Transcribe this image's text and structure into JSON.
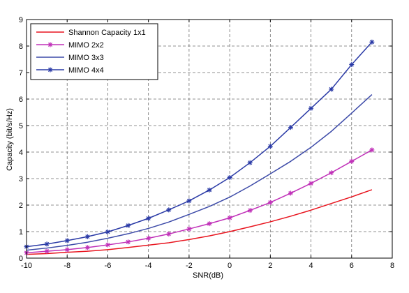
{
  "chart_data": {
    "type": "line",
    "title": "",
    "xlabel": "SNR(dB)",
    "ylabel": "Capacity (bit/s/Hz)",
    "xlim": [
      -10,
      8
    ],
    "ylim": [
      0,
      9
    ],
    "xticks": [
      -10,
      -8,
      -6,
      -4,
      -2,
      0,
      2,
      4,
      6,
      8
    ],
    "yticks": [
      0,
      1,
      2,
      3,
      4,
      5,
      6,
      7,
      8,
      9
    ],
    "grid": true,
    "legend_position": "top-left",
    "x": [
      -10,
      -9,
      -8,
      -7,
      -6,
      -5,
      -4,
      -3,
      -2,
      -1,
      0,
      1,
      2,
      3,
      4,
      5,
      6,
      7
    ],
    "series": [
      {
        "name": "Shannon Capacity 1x1",
        "color": "#e8141e",
        "marker": "none",
        "values": [
          0.14,
          0.17,
          0.22,
          0.26,
          0.32,
          0.4,
          0.49,
          0.58,
          0.7,
          0.84,
          1.0,
          1.18,
          1.37,
          1.58,
          1.81,
          2.06,
          2.31,
          2.58
        ]
      },
      {
        "name": "MIMO 2x2",
        "color": "#c030b8",
        "marker": "star",
        "values": [
          0.2,
          0.26,
          0.32,
          0.4,
          0.5,
          0.61,
          0.75,
          0.91,
          1.1,
          1.3,
          1.52,
          1.8,
          2.1,
          2.45,
          2.82,
          3.22,
          3.65,
          4.08
        ]
      },
      {
        "name": "MIMO 3x3",
        "color": "#3c4aa8",
        "marker": "none",
        "values": [
          0.3,
          0.38,
          0.48,
          0.6,
          0.75,
          0.92,
          1.12,
          1.36,
          1.65,
          1.95,
          2.3,
          2.72,
          3.18,
          3.65,
          4.18,
          4.78,
          5.47,
          6.17
        ]
      },
      {
        "name": "MIMO 4x4",
        "color": "#2a3aa6",
        "marker": "star",
        "values": [
          0.43,
          0.53,
          0.66,
          0.81,
          0.99,
          1.23,
          1.5,
          1.82,
          2.16,
          2.57,
          3.04,
          3.6,
          4.22,
          4.93,
          5.65,
          6.37,
          7.3,
          8.15
        ]
      }
    ]
  }
}
